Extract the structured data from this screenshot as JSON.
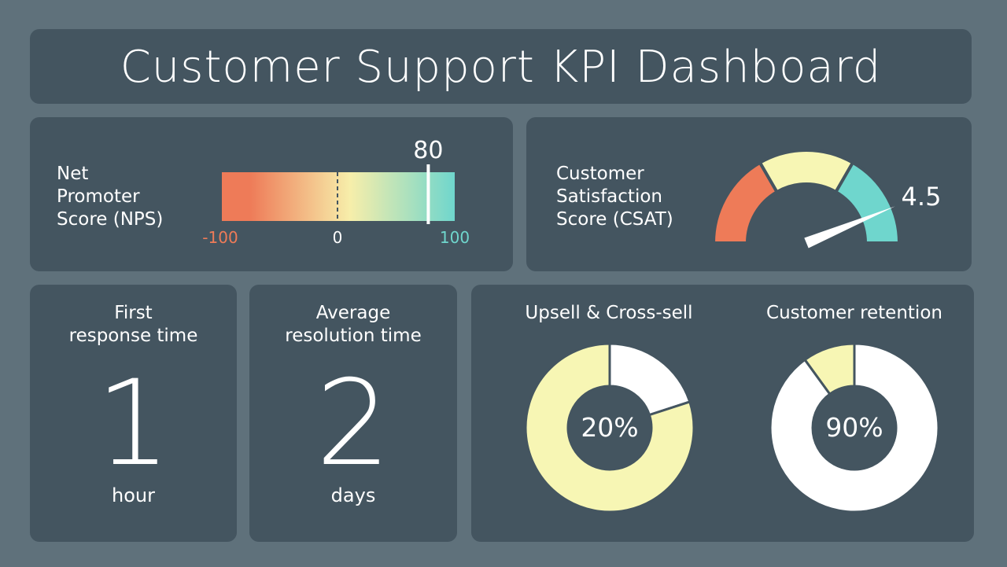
{
  "dashboard": {
    "title": "Customer Support KPI Dashboard"
  },
  "nps": {
    "label_lines": [
      "Net",
      "Promoter",
      "Score (NPS)"
    ],
    "value": 80,
    "value_label": "80",
    "min_label": "-100",
    "mid_label": "0",
    "max_label": "100",
    "colors": {
      "low": "#ee7b58",
      "mid": "#f7eeaa",
      "high": "#6fd6cd",
      "min_label": "#ee7b58",
      "max_label": "#6fd6cd",
      "mid_label": "#ffffff"
    }
  },
  "csat": {
    "label_lines": [
      "Customer",
      "Satisfaction",
      "Score (CSAT)"
    ],
    "value_label": "4.5",
    "colors": {
      "low": "#ee7b58",
      "mid": "#f7f6b4",
      "high": "#6fd6cd",
      "needle": "#ffffff"
    }
  },
  "first_response": {
    "title_lines": [
      "First",
      "response time"
    ],
    "value": "1",
    "unit": "hour"
  },
  "resolution": {
    "title_lines": [
      "Average",
      "resolution time"
    ],
    "value": "2",
    "unit": "days"
  },
  "donuts": {
    "upsell": {
      "title": "Upsell & Cross-sell",
      "label": "20%"
    },
    "retention": {
      "title": "Customer retention",
      "label": "90%"
    }
  },
  "chart_data": [
    {
      "type": "bar",
      "title": "Net Promoter Score (NPS)",
      "value": 80,
      "ylim": [
        -100,
        100
      ],
      "tick_labels": [
        "-100",
        "0",
        "100"
      ]
    },
    {
      "type": "gauge",
      "title": "Customer Satisfaction Score (CSAT)",
      "value": 4.5,
      "bands": 3
    },
    {
      "type": "pie",
      "title": "Upsell & Cross-sell",
      "values": [
        20,
        80
      ],
      "center_label": "20%",
      "colors": [
        "#ffffff",
        "#f7f6b4"
      ]
    },
    {
      "type": "pie",
      "title": "Customer retention",
      "values": [
        90,
        10
      ],
      "center_label": "90%",
      "colors": [
        "#ffffff",
        "#f7f6b4"
      ]
    }
  ]
}
